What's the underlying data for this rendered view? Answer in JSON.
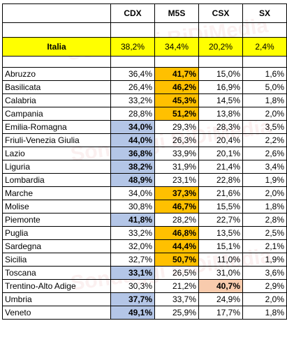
{
  "watermark": "Sondaggi BiDiMedia",
  "table": {
    "columns": [
      "CDX",
      "M5S",
      "CSX",
      "SX"
    ],
    "highlight_colors": {
      "CDX": "#b4c6e7",
      "M5S": "#ffc000",
      "CSX": "#f8cbad",
      "SX": "#c6e0b4"
    },
    "national": {
      "name": "Italia",
      "values": [
        "38,2%",
        "34,4%",
        "20,2%",
        "2,4%"
      ]
    },
    "rows": [
      [
        "Abruzzo",
        "36,4%",
        "41,7%",
        "15,0%",
        "1,6%"
      ],
      [
        "Basilicata",
        "26,4%",
        "46,2%",
        "16,9%",
        "5,0%"
      ],
      [
        "Calabria",
        "33,2%",
        "45,3%",
        "14,5%",
        "1,8%"
      ],
      [
        "Campania",
        "28,8%",
        "51,2%",
        "13,8%",
        "2,0%"
      ],
      [
        "Emilia-Romagna",
        "34,0%",
        "29,3%",
        "28,3%",
        "3,5%"
      ],
      [
        "Friuli-Venezia Giulia",
        "44,0%",
        "26,3%",
        "20,4%",
        "2,2%"
      ],
      [
        "Lazio",
        "36,8%",
        "33,9%",
        "20,1%",
        "2,6%"
      ],
      [
        "Liguria",
        "38,2%",
        "31,9%",
        "21,4%",
        "3,4%"
      ],
      [
        "Lombardia",
        "48,9%",
        "23,1%",
        "22,8%",
        "1,9%"
      ],
      [
        "Marche",
        "34,0%",
        "37,3%",
        "21,6%",
        "2,0%"
      ],
      [
        "Molise",
        "30,8%",
        "46,7%",
        "15,5%",
        "1,8%"
      ],
      [
        "Piemonte",
        "41,8%",
        "28,2%",
        "22,7%",
        "2,8%"
      ],
      [
        "Puglia",
        "33,2%",
        "46,8%",
        "13,5%",
        "2,5%"
      ],
      [
        "Sardegna",
        "32,0%",
        "44,4%",
        "15,1%",
        "2,1%"
      ],
      [
        "Sicilia",
        "32,7%",
        "50,7%",
        "11,0%",
        "1,9%"
      ],
      [
        "Toscana",
        "33,1%",
        "26,5%",
        "31,0%",
        "3,6%"
      ],
      [
        "Trentino-Alto Adige",
        "30,3%",
        "21,2%",
        "40,7%",
        "2,9%"
      ],
      [
        "Umbria",
        "37,7%",
        "33,7%",
        "24,9%",
        "2,0%"
      ],
      [
        "Veneto",
        "49,1%",
        "25,9%",
        "17,7%",
        "1,8%"
      ]
    ]
  }
}
